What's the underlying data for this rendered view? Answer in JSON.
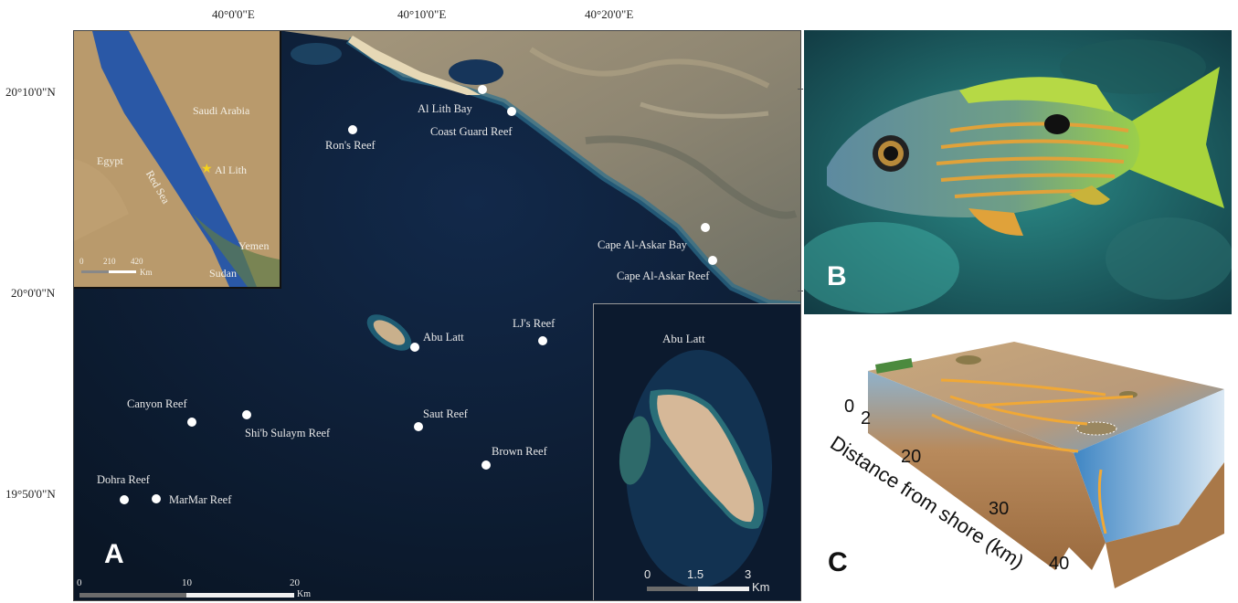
{
  "longitude_labels": [
    "40°0'0\"E",
    "40°10'0\"E",
    "40°20'0\"E"
  ],
  "latitude_labels": [
    "20°10'0\"N",
    "20°0'0\"N",
    "19°50'0\"N"
  ],
  "inset_map": {
    "countries": [
      "Saudi Arabia",
      "Egypt",
      "Yemen",
      "Sudan"
    ],
    "sea_label": "Red Sea",
    "location_label": "Al Lith",
    "scale_ticks": [
      "0",
      "210",
      "420"
    ],
    "scale_unit": "Km"
  },
  "sites": [
    {
      "name": "Al Lith Bay"
    },
    {
      "name": "Coast Guard Reef"
    },
    {
      "name": "Ron's Reef"
    },
    {
      "name": "Cape Al-Askar Bay"
    },
    {
      "name": "Cape Al-Askar Reef"
    },
    {
      "name": "Abu Latt"
    },
    {
      "name": "LJ's Reef"
    },
    {
      "name": "Canyon Reef"
    },
    {
      "name": "Shi'b Sulaym Reef"
    },
    {
      "name": "Saut Reef"
    },
    {
      "name": "Brown Reef"
    },
    {
      "name": "Dohra Reef"
    },
    {
      "name": "MarMar Reef"
    }
  ],
  "main_scale": {
    "ticks": [
      "0",
      "10",
      "20"
    ],
    "unit": "Km"
  },
  "abu_inset": {
    "title": "Abu Latt",
    "scale_ticks": [
      "0",
      "1.5",
      "3"
    ],
    "unit": "Km"
  },
  "panels": {
    "a": "A",
    "b": "B",
    "c": "C"
  },
  "diagram": {
    "axis_label": "Distance from shore (km)",
    "ticks": [
      "0",
      "2",
      "20",
      "30",
      "40"
    ]
  },
  "colors": {
    "sea": "#0c1a2c",
    "inset_sea": "#2a58a6",
    "land": "#b99a6c",
    "marker": "#f5d21a"
  }
}
